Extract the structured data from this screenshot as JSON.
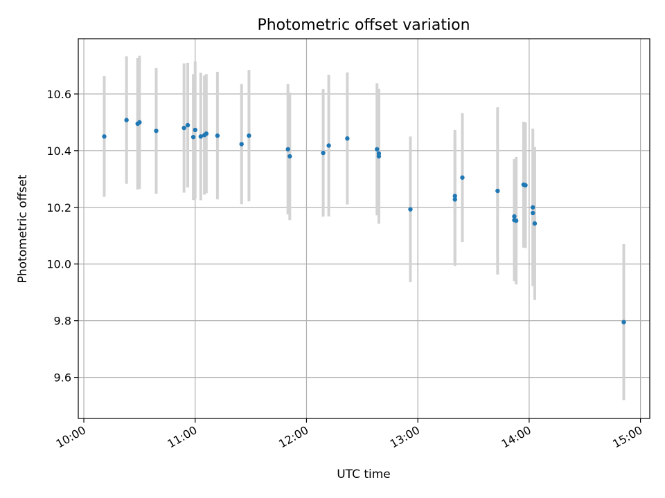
{
  "chart_data": {
    "type": "scatter",
    "title": "Photometric offset variation",
    "xlabel": "UTC time",
    "ylabel": "Photometric offset",
    "x_ticks": [
      "10:00",
      "11:00",
      "12:00",
      "13:00",
      "14:00",
      "15:00"
    ],
    "y_ticks": [
      "9.6",
      "9.8",
      "10.0",
      "10.2",
      "10.4",
      "10.6"
    ],
    "xlim": [
      "09:57",
      "15:05"
    ],
    "ylim": [
      9.455,
      10.795
    ],
    "grid": true,
    "colors": {
      "points": "#1f77b4",
      "error_bars": "#d3d3d3",
      "grid": "#b0b0b0"
    },
    "series": [
      {
        "points": [
          {
            "x": "10:11",
            "y": 10.45,
            "err": 0.213
          },
          {
            "x": "10:23",
            "y": 10.508,
            "err": 0.225
          },
          {
            "x": "10:29",
            "y": 10.495,
            "err": 0.232
          },
          {
            "x": "10:30",
            "y": 10.5,
            "err": 0.235
          },
          {
            "x": "10:39",
            "y": 10.47,
            "err": 0.222
          },
          {
            "x": "10:54",
            "y": 10.48,
            "err": 0.228
          },
          {
            "x": "10:56",
            "y": 10.49,
            "err": 0.22
          },
          {
            "x": "10:59",
            "y": 10.448,
            "err": 0.222
          },
          {
            "x": "11:00",
            "y": 10.473,
            "err": 0.242
          },
          {
            "x": "11:03",
            "y": 10.45,
            "err": 0.225
          },
          {
            "x": "11:05",
            "y": 10.455,
            "err": 0.21
          },
          {
            "x": "11:06",
            "y": 10.46,
            "err": 0.21
          },
          {
            "x": "11:12",
            "y": 10.453,
            "err": 0.225
          },
          {
            "x": "11:25",
            "y": 10.423,
            "err": 0.212
          },
          {
            "x": "11:29",
            "y": 10.453,
            "err": 0.232
          },
          {
            "x": "11:50",
            "y": 10.405,
            "err": 0.23
          },
          {
            "x": "11:51",
            "y": 10.38,
            "err": 0.225
          },
          {
            "x": "12:09",
            "y": 10.392,
            "err": 0.225
          },
          {
            "x": "12:12",
            "y": 10.418,
            "err": 0.25
          },
          {
            "x": "12:22",
            "y": 10.443,
            "err": 0.233
          },
          {
            "x": "12:38",
            "y": 10.405,
            "err": 0.233
          },
          {
            "x": "12:39",
            "y": 10.39,
            "err": 0.225
          },
          {
            "x": "12:39",
            "y": 10.38,
            "err": 0.238
          },
          {
            "x": "12:56",
            "y": 10.193,
            "err": 0.257
          },
          {
            "x": "13:20",
            "y": 10.228,
            "err": 0.235
          },
          {
            "x": "13:20",
            "y": 10.24,
            "err": 0.233
          },
          {
            "x": "13:24",
            "y": 10.305,
            "err": 0.228
          },
          {
            "x": "13:43",
            "y": 10.258,
            "err": 0.295
          },
          {
            "x": "13:52",
            "y": 10.168,
            "err": 0.2
          },
          {
            "x": "13:52",
            "y": 10.155,
            "err": 0.215
          },
          {
            "x": "13:53",
            "y": 10.153,
            "err": 0.225
          },
          {
            "x": "13:57",
            "y": 10.28,
            "err": 0.222
          },
          {
            "x": "13:58",
            "y": 10.278,
            "err": 0.222
          },
          {
            "x": "14:02",
            "y": 10.2,
            "err": 0.278
          },
          {
            "x": "14:02",
            "y": 10.18,
            "err": 0.23
          },
          {
            "x": "14:03",
            "y": 10.143,
            "err": 0.27
          },
          {
            "x": "14:51",
            "y": 9.795,
            "err": 0.275
          }
        ]
      }
    ]
  }
}
